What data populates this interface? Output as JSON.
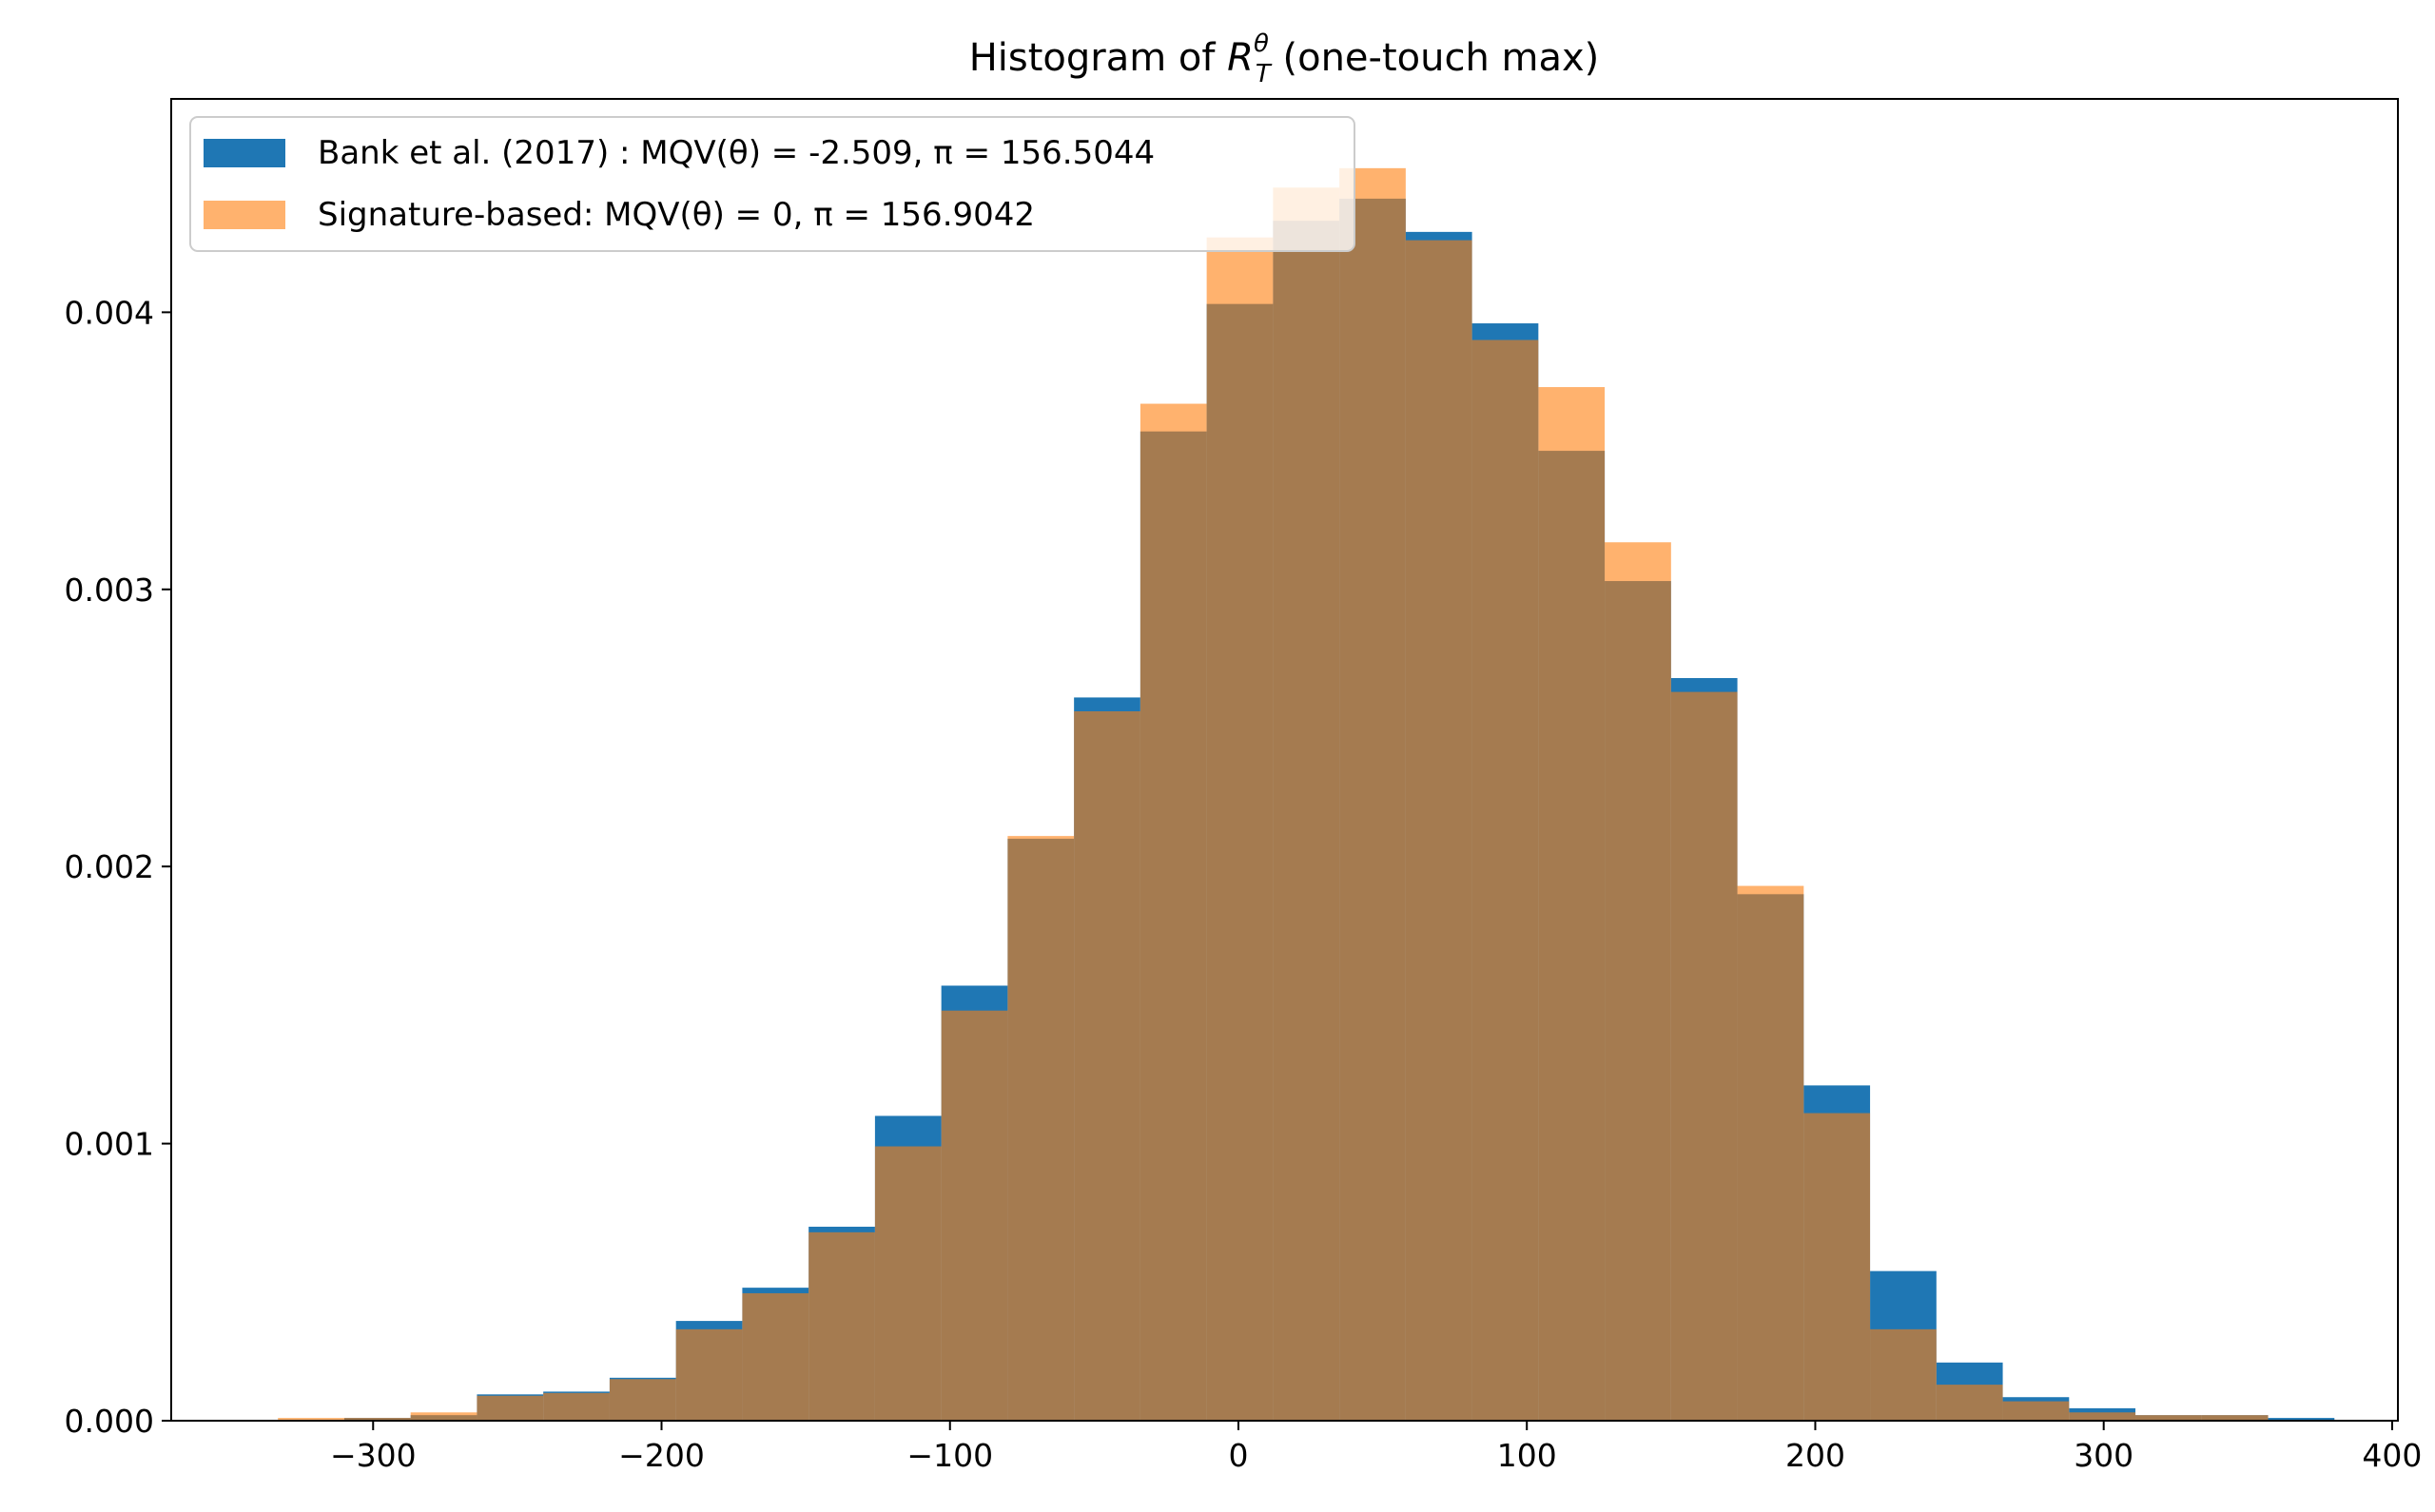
{
  "chart_data": {
    "type": "bar",
    "title": {
      "prefix": "Histogram of ",
      "base": "R",
      "sub": "T",
      "sup": "θ",
      "suffix": " (one-touch max)"
    },
    "xlabel": "",
    "ylabel": "",
    "xlim": [
      -370,
      402
    ],
    "ylim": [
      0,
      0.00477
    ],
    "xticks": [
      -300,
      -200,
      -100,
      0,
      100,
      200,
      300,
      400
    ],
    "xtick_labels": [
      "−300",
      "−200",
      "−100",
      "0",
      "100",
      "200",
      "300",
      "400"
    ],
    "yticks": [
      0.0,
      0.001,
      0.002,
      0.003,
      0.004
    ],
    "ytick_labels": [
      "0.000",
      "0.001",
      "0.002",
      "0.003",
      "0.004"
    ],
    "grid": false,
    "legend_position": "top-left",
    "series": [
      {
        "name": "Bank et al. (2017) : MQV(θ) =  -2.509, π = 156.5044",
        "color": "#1f77b4",
        "opacity": 1.0,
        "bins": [
          [
            -310,
            -287,
            1e-05
          ],
          [
            -287,
            -264,
            2e-05
          ],
          [
            -264,
            -241,
            9.5e-05
          ],
          [
            -241,
            -218,
            0.000105
          ],
          [
            -218,
            -195,
            0.000155
          ],
          [
            -195,
            -172,
            0.00036
          ],
          [
            -172,
            -149,
            0.00048
          ],
          [
            -149,
            -126,
            0.0007
          ],
          [
            -126,
            -103,
            0.0011
          ],
          [
            -103,
            -80,
            0.00157
          ],
          [
            -80,
            -57,
            0.0021
          ],
          [
            -57,
            -34,
            0.00261
          ],
          [
            -34,
            -11,
            0.00357
          ],
          [
            -11,
            12,
            0.00403
          ],
          [
            12,
            35,
            0.00433
          ],
          [
            35,
            58,
            0.00441
          ],
          [
            58,
            81,
            0.00429
          ],
          [
            81,
            104,
            0.00396
          ],
          [
            104,
            127,
            0.0035
          ],
          [
            127,
            150,
            0.00303
          ],
          [
            150,
            173,
            0.00268
          ],
          [
            173,
            196,
            0.0019
          ],
          [
            196,
            219,
            0.00121
          ],
          [
            219,
            242,
            0.00054
          ],
          [
            242,
            265,
            0.00021
          ],
          [
            265,
            288,
            8.5e-05
          ],
          [
            288,
            311,
            4.5e-05
          ],
          [
            311,
            334,
            2e-05
          ],
          [
            334,
            357,
            2e-05
          ],
          [
            357,
            380,
            1e-05
          ]
        ]
      },
      {
        "name": "Signature-based: MQV(θ) = 0, π =  156.9042",
        "color": "#ff7f0e",
        "opacity": 0.6,
        "bins": [
          [
            -333,
            -310,
            1e-05
          ],
          [
            -310,
            -287,
            1e-05
          ],
          [
            -287,
            -264,
            3e-05
          ],
          [
            -264,
            -241,
            9e-05
          ],
          [
            -241,
            -218,
            0.0001
          ],
          [
            -218,
            -195,
            0.00015
          ],
          [
            -195,
            -172,
            0.00033
          ],
          [
            -172,
            -149,
            0.00046
          ],
          [
            -149,
            -126,
            0.00068
          ],
          [
            -126,
            -103,
            0.00099
          ],
          [
            -103,
            -80,
            0.00148
          ],
          [
            -80,
            -57,
            0.00211
          ],
          [
            -57,
            -34,
            0.00256
          ],
          [
            -34,
            -11,
            0.00367
          ],
          [
            -11,
            12,
            0.00427
          ],
          [
            12,
            35,
            0.00445
          ],
          [
            35,
            58,
            0.00452
          ],
          [
            58,
            81,
            0.00426
          ],
          [
            81,
            104,
            0.0039
          ],
          [
            104,
            127,
            0.00373
          ],
          [
            127,
            150,
            0.00317
          ],
          [
            150,
            173,
            0.00263
          ],
          [
            173,
            196,
            0.00193
          ],
          [
            196,
            219,
            0.00111
          ],
          [
            219,
            242,
            0.00033
          ],
          [
            242,
            265,
            0.00013
          ],
          [
            265,
            288,
            7e-05
          ],
          [
            288,
            311,
            3e-05
          ],
          [
            311,
            334,
            2e-05
          ],
          [
            334,
            357,
            2e-05
          ]
        ]
      }
    ]
  }
}
